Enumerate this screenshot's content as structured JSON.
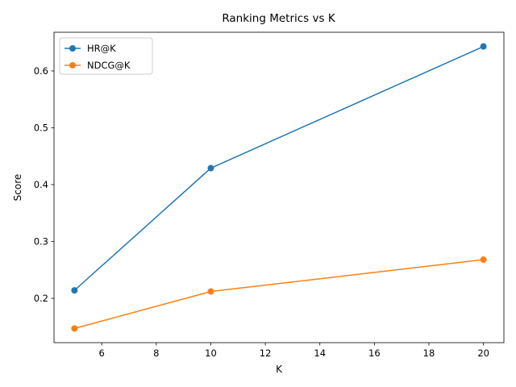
{
  "chart_data": {
    "type": "line",
    "title": "Ranking Metrics vs K",
    "xlabel": "K",
    "ylabel": "Score",
    "x": [
      5,
      10,
      20
    ],
    "xlim": [
      4.25,
      20.75
    ],
    "ylim": [
      0.122,
      0.668
    ],
    "xticks": [
      6,
      8,
      10,
      12,
      14,
      16,
      18,
      20
    ],
    "yticks": [
      0.2,
      0.3,
      0.4,
      0.5,
      0.6
    ],
    "xtick_labels": [
      "6",
      "8",
      "10",
      "12",
      "14",
      "16",
      "18",
      "20"
    ],
    "ytick_labels": [
      "0.2",
      "0.3",
      "0.4",
      "0.5",
      "0.6"
    ],
    "grid": false,
    "legend_position": "upper-left",
    "series": [
      {
        "name": "HR@K",
        "color": "#1f77b4",
        "values": [
          0.214,
          0.429,
          0.643
        ]
      },
      {
        "name": "NDCG@K",
        "color": "#ff7f0e",
        "values": [
          0.147,
          0.212,
          0.268
        ]
      }
    ]
  }
}
